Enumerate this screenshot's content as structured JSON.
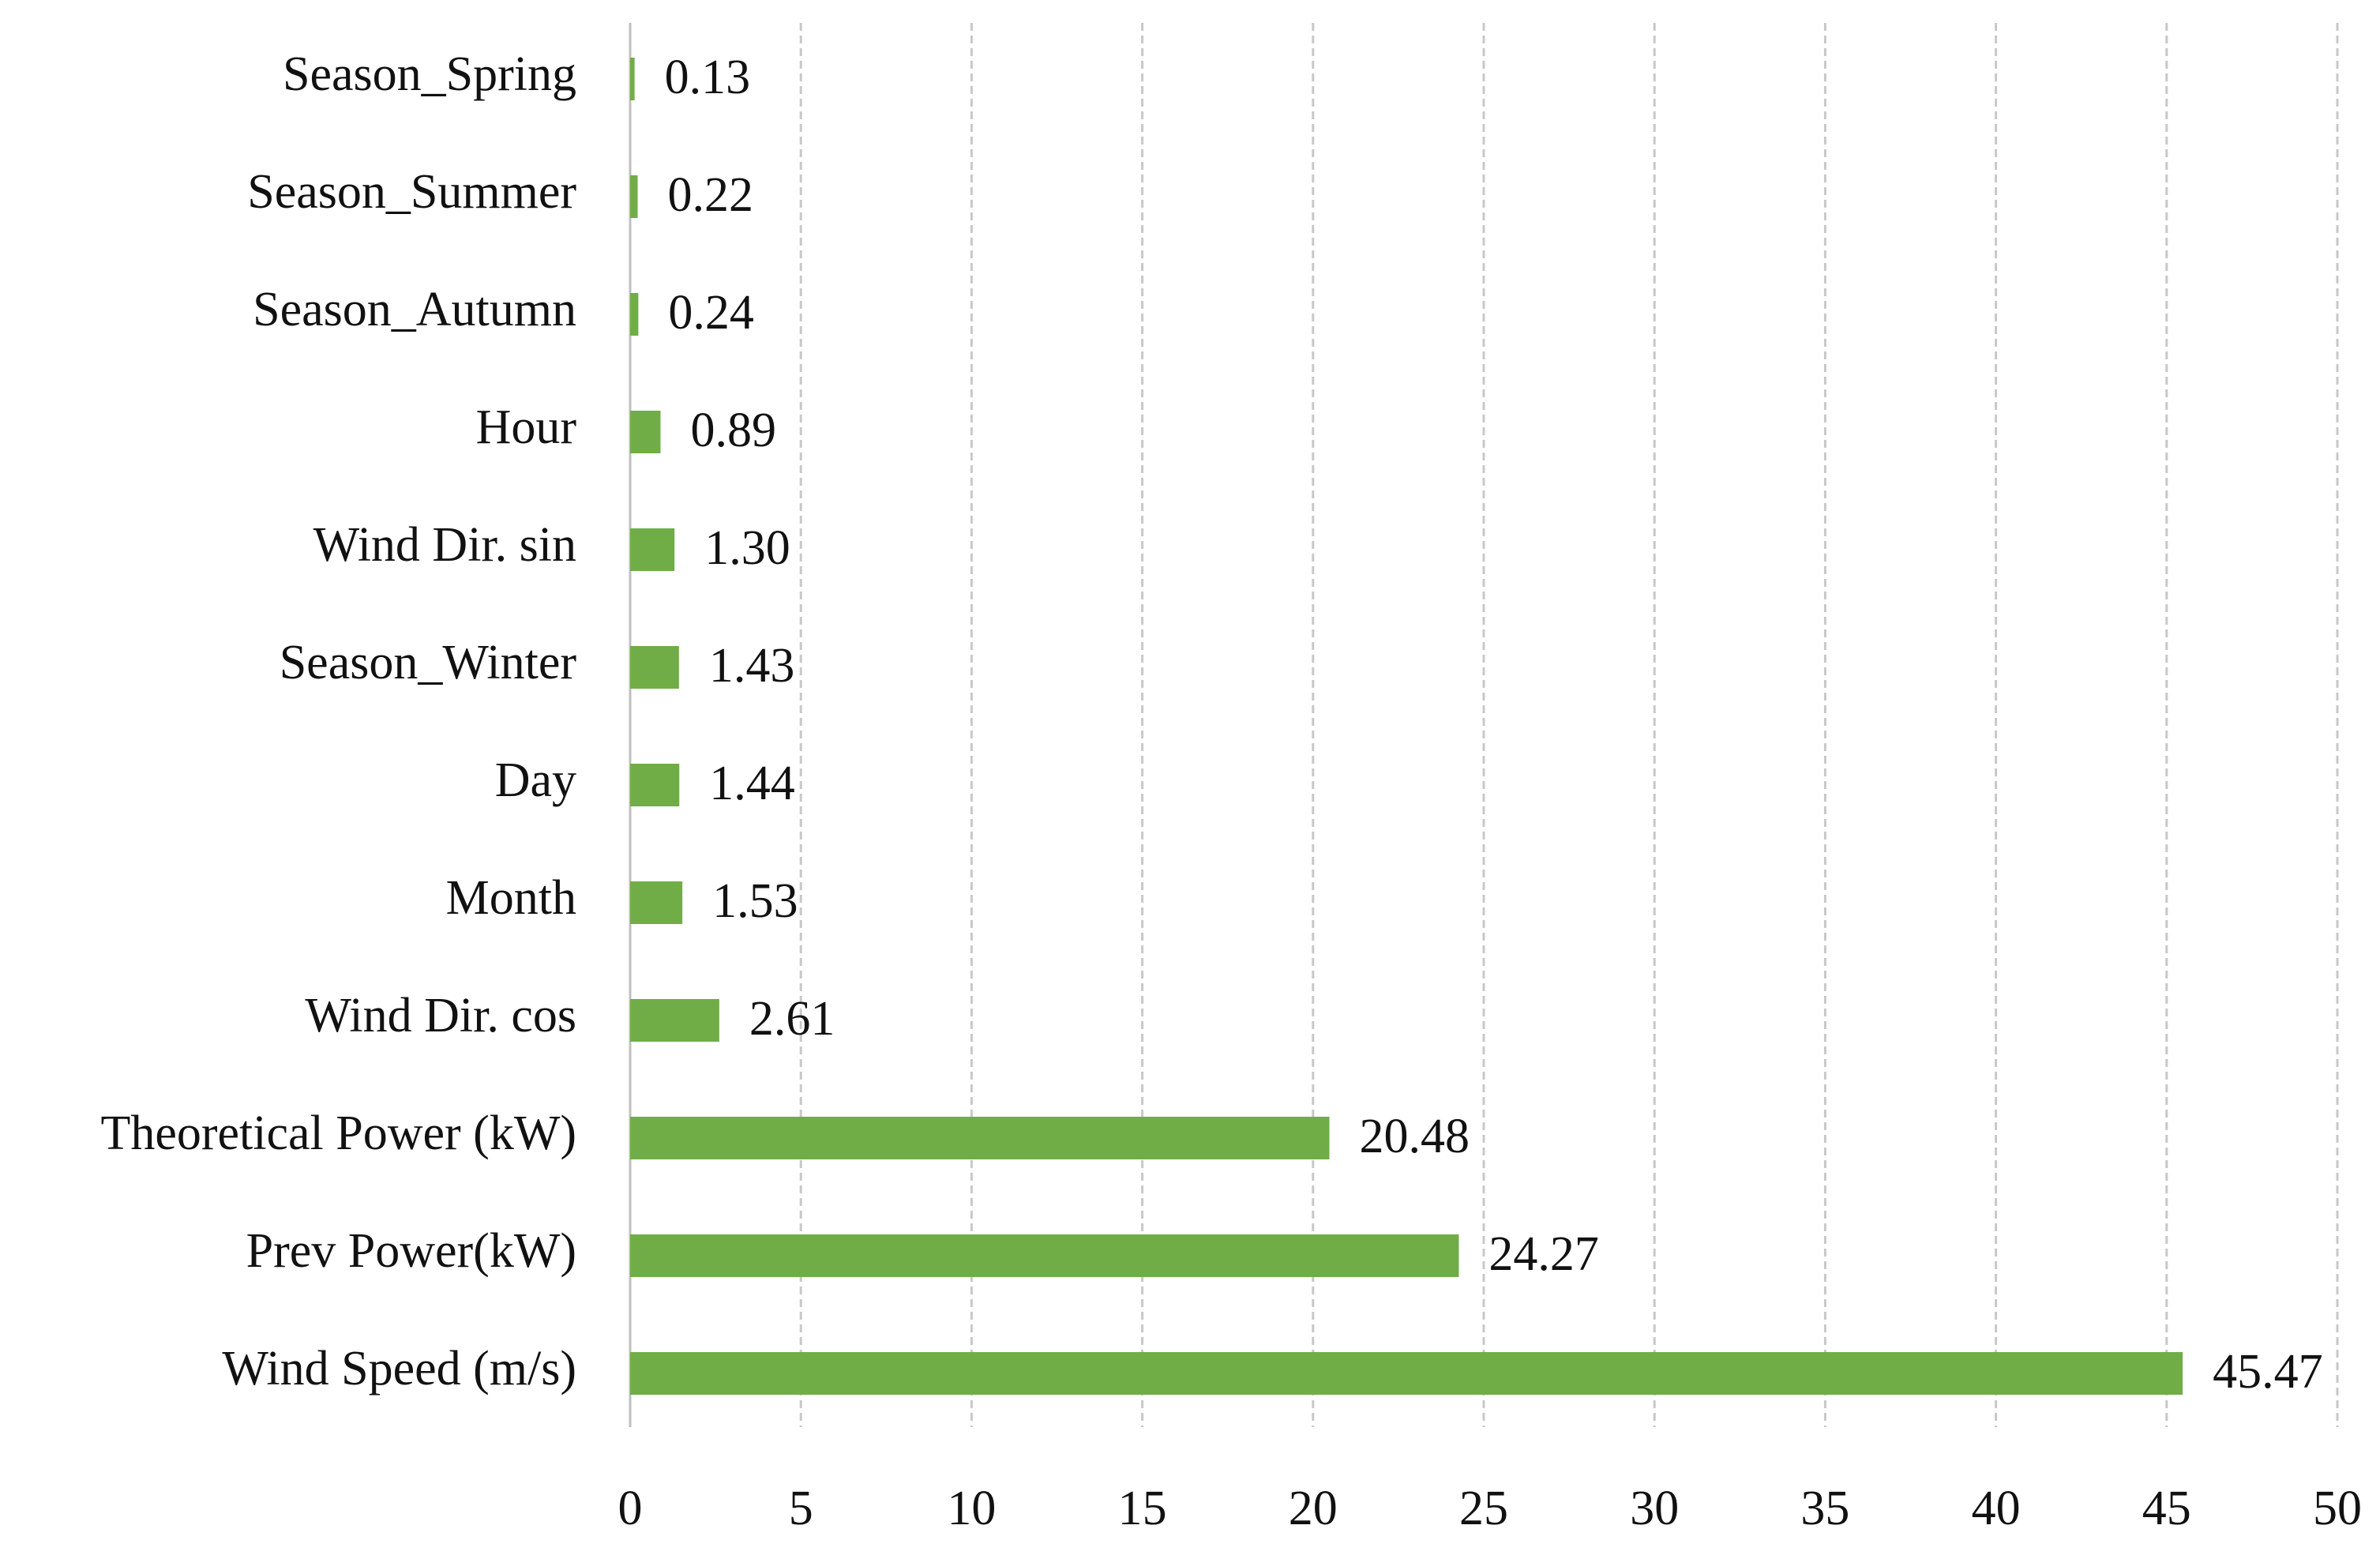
{
  "chart_data": {
    "type": "bar",
    "orientation": "horizontal",
    "categories": [
      "Season_Spring",
      "Season_Summer",
      "Season_Autumn",
      "Hour",
      "Wind Dir. sin",
      "Season_Winter",
      "Day",
      "Month",
      "Wind Dir. cos",
      "Theoretical Power (kW)",
      "Prev Power(kW)",
      "Wind Speed (m/s)"
    ],
    "values": [
      0.13,
      0.22,
      0.24,
      0.89,
      1.3,
      1.43,
      1.44,
      1.53,
      2.61,
      20.48,
      24.27,
      45.47
    ],
    "value_labels": [
      "0.13",
      "0.22",
      "0.24",
      "0.89",
      "1.30",
      "1.43",
      "1.44",
      "1.53",
      "2.61",
      "20.48",
      "24.27",
      "45.47"
    ],
    "color": "#70ad47",
    "xlim": [
      0,
      50
    ],
    "xticks": [
      0,
      5,
      10,
      15,
      20,
      25,
      30,
      35,
      40,
      45,
      50
    ],
    "grid": true
  }
}
